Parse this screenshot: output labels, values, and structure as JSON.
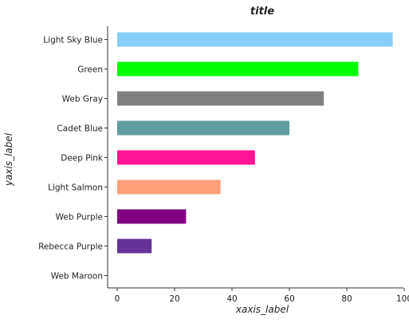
{
  "chart_data": {
    "type": "bar",
    "orientation": "horizontal",
    "title": "title",
    "xlabel": "xaxis_label",
    "ylabel": "yaxis_label",
    "xlim": [
      0,
      100
    ],
    "xticks": [
      0,
      20,
      40,
      60,
      80,
      100
    ],
    "xtick_labels": [
      "0",
      "20",
      "40",
      "60",
      "80",
      "100"
    ],
    "grid": false,
    "legend": false,
    "categories": [
      "Web Maroon",
      "Rebecca Purple",
      "Web Purple",
      "Light Salmon",
      "Deep Pink",
      "Cadet Blue",
      "Web Gray",
      "Green",
      "Light Sky Blue"
    ],
    "values": [
      0,
      12,
      24,
      36,
      48,
      60,
      72,
      84,
      96
    ],
    "colors": [
      "#800000",
      "#663399",
      "#800080",
      "#ffa07a",
      "#ff1493",
      "#5f9ea0",
      "#808080",
      "#00ff00",
      "#87cefa"
    ]
  }
}
